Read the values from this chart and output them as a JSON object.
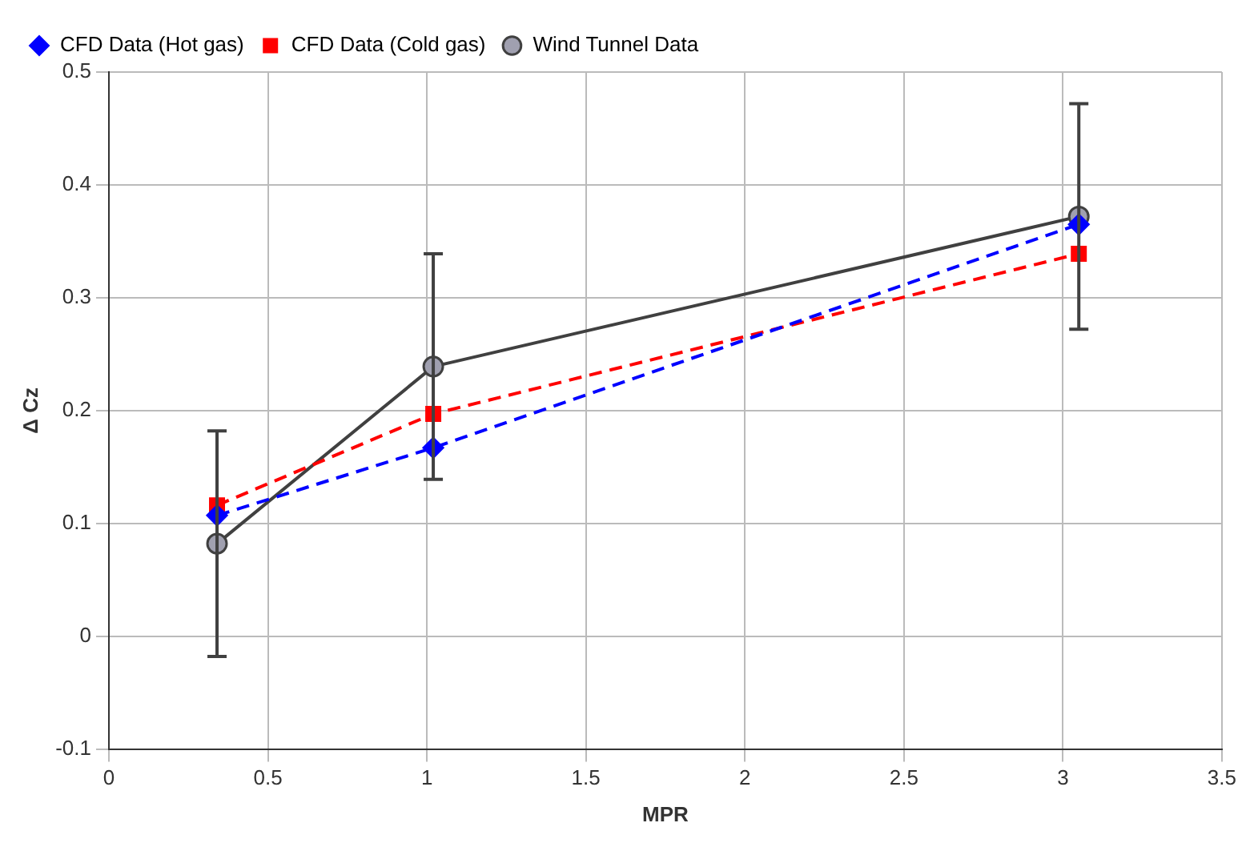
{
  "chart_data": {
    "type": "line",
    "xlabel": "MPR",
    "ylabel": "Δ Cz",
    "xlim": [
      0,
      3.5
    ],
    "xticks": [
      0,
      0.5,
      1,
      1.5,
      2,
      2.5,
      3,
      3.5
    ],
    "ylim": [
      -0.1,
      0.5
    ],
    "yticks": [
      -0.1,
      0,
      0.1,
      0.2,
      0.3,
      0.4,
      0.5
    ],
    "grid": true,
    "legend": "top left",
    "series": [
      {
        "name": "Wind Tunnel Data",
        "color": "#404040",
        "x": [
          0.34,
          1.02,
          3.05
        ],
        "values": [
          0.082,
          0.239,
          0.372
        ],
        "errors": [
          0.1,
          0.1,
          0.1
        ],
        "marker": "circle",
        "line_style": "solid"
      },
      {
        "name": "CFD Data (Cold gas)",
        "color": "#ff0000",
        "x": [
          0.34,
          1.02,
          3.05
        ],
        "values": [
          0.116,
          0.197,
          0.339
        ],
        "marker": "square",
        "line_style": "dashed"
      },
      {
        "name": "CFD Data (Hot gas)",
        "color": "#0000ff",
        "x": [
          0.34,
          1.02,
          3.05
        ],
        "values": [
          0.107,
          0.167,
          0.365
        ],
        "marker": "diamond",
        "line_style": "dashed"
      }
    ]
  }
}
